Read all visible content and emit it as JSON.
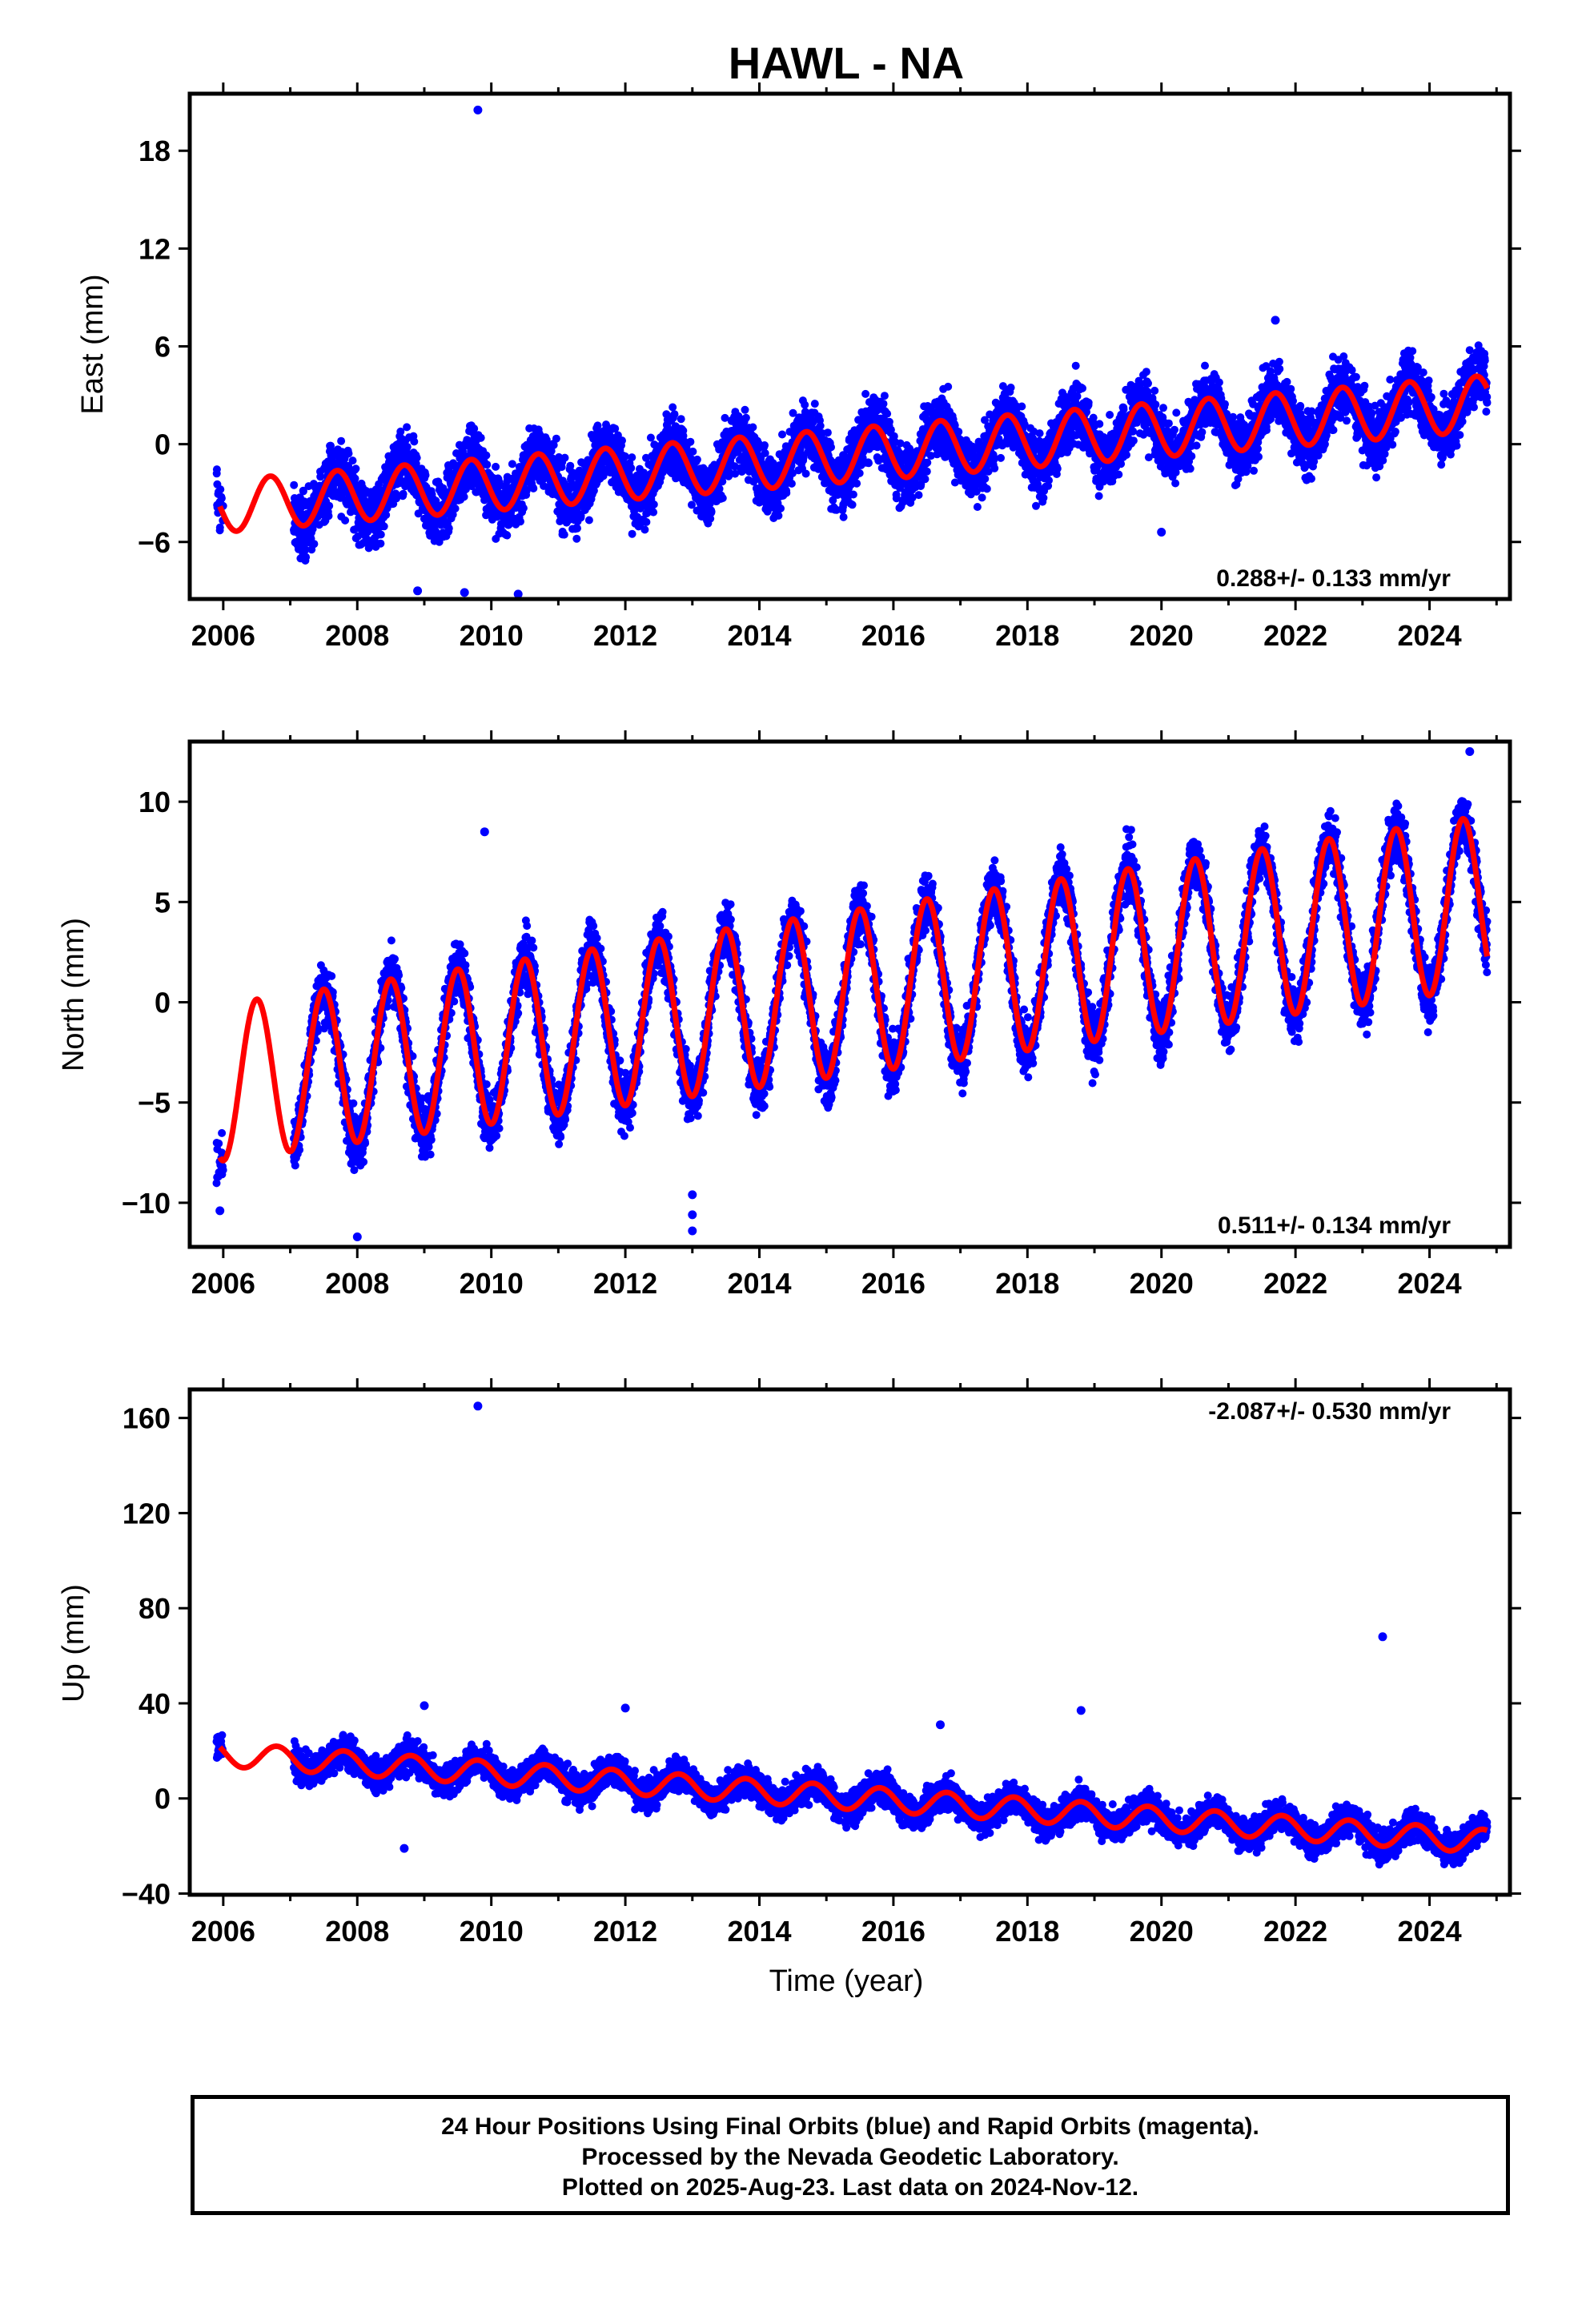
{
  "title": "HAWL - NA",
  "x_axis_label": "Time (year)",
  "x_ticks": [
    "2006",
    "2008",
    "2010",
    "2012",
    "2014",
    "2016",
    "2018",
    "2020",
    "2022",
    "2024"
  ],
  "colors": {
    "observations": "#0000ff",
    "model": "#ff0000",
    "frame": "#000000"
  },
  "note_lines": [
    "24 Hour Positions Using Final Orbits (blue) and Rapid Orbits (magenta).",
    "Processed by the Nevada Geodetic Laboratory.",
    "Plotted on 2025-Aug-23. Last data on 2024-Nov-12."
  ],
  "chart_data": [
    {
      "type": "scatter",
      "title": "HAWL - NA",
      "xlabel": "",
      "ylabel": "East (mm)",
      "xlim": [
        2005.5,
        2025.2
      ],
      "ylim": [
        -9.5,
        21.5
      ],
      "yticks": [
        18,
        12,
        6,
        0,
        -6
      ],
      "rate_label": "0.288+/- 0.133 mm/yr",
      "rate_position": "bottom-right",
      "data_range": [
        2005.9,
        2024.86
      ],
      "gap": [
        2006.0,
        2007.05
      ],
      "noise": 1.3,
      "trend_points": [
        [
          2006.0,
          -3.8
        ],
        [
          2024.8,
          2.5
        ]
      ],
      "seasonal_amplitude_start": 1.6,
      "seasonal_amplitude_end": 1.7,
      "seasonal_peak_phase": 0.7,
      "outliers": [
        [
          2009.8,
          20.5
        ],
        [
          2009.6,
          -9.1
        ],
        [
          2008.9,
          -9.0
        ],
        [
          2010.4,
          -9.2
        ],
        [
          2020.0,
          -5.4
        ],
        [
          2021.7,
          7.6
        ]
      ]
    },
    {
      "type": "scatter",
      "xlabel": "",
      "ylabel": "North (mm)",
      "xlim": [
        2005.5,
        2025.2
      ],
      "ylim": [
        -12.2,
        13.0
      ],
      "yticks": [
        10,
        5,
        0,
        -5,
        -10
      ],
      "rate_label": "0.511+/- 0.134 mm/yr",
      "rate_position": "bottom-right",
      "data_range": [
        2005.9,
        2024.86
      ],
      "gap": [
        2006.0,
        2007.05
      ],
      "noise": 1.0,
      "trend_points": [
        [
          2006.0,
          -4.0
        ],
        [
          2024.8,
          5.0
        ]
      ],
      "seasonal_amplitude_start": 3.9,
      "seasonal_amplitude_end": 4.3,
      "seasonal_peak_phase": 0.5,
      "outliers": [
        [
          2009.9,
          8.5
        ],
        [
          2013.0,
          -9.6
        ],
        [
          2013.0,
          -10.6
        ],
        [
          2013.0,
          -11.4
        ],
        [
          2008.0,
          -11.7
        ],
        [
          2005.95,
          -10.4
        ],
        [
          2024.6,
          12.5
        ]
      ]
    },
    {
      "type": "scatter",
      "xlabel": "Time (year)",
      "ylabel": "Up (mm)",
      "xlim": [
        2005.5,
        2025.2
      ],
      "ylim": [
        -40.5,
        172
      ],
      "yticks": [
        160,
        120,
        80,
        40,
        0,
        -40
      ],
      "rate_label": "-2.087+/- 0.530 mm/yr",
      "rate_position": "top-right",
      "data_range": [
        2005.9,
        2024.86
      ],
      "gap": [
        2006.0,
        2007.05
      ],
      "noise": 4.5,
      "trend_points": [
        [
          2006.0,
          18.5
        ],
        [
          2024.8,
          -18.0
        ]
      ],
      "seasonal_amplitude_start": 5.0,
      "seasonal_amplitude_end": 5.0,
      "seasonal_peak_phase": 0.8,
      "outliers": [
        [
          2009.8,
          165
        ],
        [
          2023.3,
          68
        ],
        [
          2018.8,
          37
        ],
        [
          2016.7,
          31
        ],
        [
          2012.0,
          38
        ],
        [
          2008.7,
          -21
        ],
        [
          2009.0,
          39
        ]
      ]
    }
  ]
}
